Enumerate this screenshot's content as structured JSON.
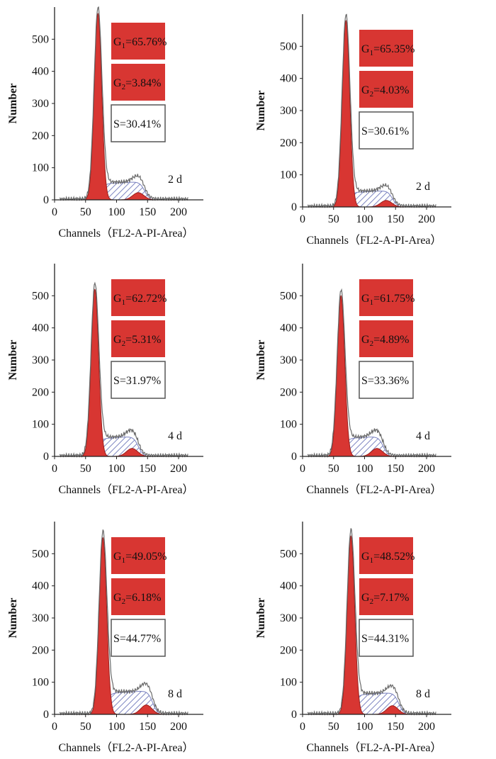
{
  "figure": {
    "axis_labels": {
      "x": "Channels（FL2-A-PI-Area）",
      "y": "Number"
    },
    "colors": {
      "g1_fill": "#d83632",
      "g1_stroke": "#9a1f1c",
      "s_hatch": "#7a82c0",
      "s_box_border": "#555555",
      "envelope": "#6a6a6a"
    }
  },
  "chart_data": [
    {
      "type": "histogram",
      "day": "2 d",
      "x_ticks": [
        0,
        50,
        100,
        150,
        200
      ],
      "y_ticks": [
        0,
        100,
        200,
        300,
        400,
        500
      ],
      "xlim": [
        0,
        240
      ],
      "ylim": [
        0,
        600
      ],
      "g1_peak_channel": 70,
      "g1_peak_height": 580,
      "g2_peak_channel": 135,
      "s_plateau_height": 50,
      "phases": [
        {
          "key": "G1",
          "sub": "1",
          "value": "=65.76%",
          "fill": "red"
        },
        {
          "key": "G2",
          "sub": "2",
          "value": "=3.84%",
          "fill": "red"
        },
        {
          "key": "S",
          "sub": "",
          "value": "=30.41%",
          "fill": "white"
        }
      ]
    },
    {
      "type": "histogram",
      "day": "2 d",
      "x_ticks": [
        0,
        50,
        100,
        150,
        200
      ],
      "y_ticks": [
        0,
        100,
        200,
        300,
        400,
        500
      ],
      "xlim": [
        0,
        240
      ],
      "ylim": [
        0,
        600
      ],
      "g1_peak_channel": 70,
      "g1_peak_height": 580,
      "g2_peak_channel": 135,
      "s_plateau_height": 45,
      "phases": [
        {
          "key": "G1",
          "sub": "1",
          "value": "=65.35%",
          "fill": "red"
        },
        {
          "key": "G2",
          "sub": "2",
          "value": "=4.03%",
          "fill": "red"
        },
        {
          "key": "S",
          "sub": "",
          "value": "=30.61%",
          "fill": "white"
        }
      ]
    },
    {
      "type": "histogram",
      "day": "4 d",
      "x_ticks": [
        0,
        50,
        100,
        150,
        200
      ],
      "y_ticks": [
        0,
        100,
        200,
        300,
        400,
        500
      ],
      "xlim": [
        0,
        240
      ],
      "ylim": [
        0,
        600
      ],
      "g1_peak_channel": 65,
      "g1_peak_height": 520,
      "g2_peak_channel": 125,
      "s_plateau_height": 55,
      "phases": [
        {
          "key": "G1",
          "sub": "1",
          "value": "=62.72%",
          "fill": "red"
        },
        {
          "key": "G2",
          "sub": "2",
          "value": "=5.31%",
          "fill": "red"
        },
        {
          "key": "S",
          "sub": "",
          "value": "=31.97%",
          "fill": "white"
        }
      ]
    },
    {
      "type": "histogram",
      "day": "4 d",
      "x_ticks": [
        0,
        50,
        100,
        150,
        200
      ],
      "y_ticks": [
        0,
        100,
        200,
        300,
        400,
        500
      ],
      "xlim": [
        0,
        240
      ],
      "ylim": [
        0,
        600
      ],
      "g1_peak_channel": 62,
      "g1_peak_height": 500,
      "g2_peak_channel": 120,
      "s_plateau_height": 55,
      "phases": [
        {
          "key": "G1",
          "sub": "1",
          "value": "=61.75%",
          "fill": "red"
        },
        {
          "key": "G2",
          "sub": "2",
          "value": "=4.89%",
          "fill": "red"
        },
        {
          "key": "S",
          "sub": "",
          "value": "=33.36%",
          "fill": "white"
        }
      ]
    },
    {
      "type": "histogram",
      "day": "8 d",
      "x_ticks": [
        0,
        50,
        100,
        150,
        200
      ],
      "y_ticks": [
        0,
        100,
        200,
        300,
        400,
        500
      ],
      "xlim": [
        0,
        240
      ],
      "ylim": [
        0,
        600
      ],
      "g1_peak_channel": 78,
      "g1_peak_height": 550,
      "g2_peak_channel": 148,
      "s_plateau_height": 65,
      "phases": [
        {
          "key": "G1",
          "sub": "1",
          "value": "=49.05%",
          "fill": "red"
        },
        {
          "key": "G2",
          "sub": "2",
          "value": "=6.18%",
          "fill": "red"
        },
        {
          "key": "S",
          "sub": "",
          "value": "=44.77%",
          "fill": "white"
        }
      ]
    },
    {
      "type": "histogram",
      "day": "8 d",
      "x_ticks": [
        0,
        50,
        100,
        150,
        200
      ],
      "y_ticks": [
        0,
        100,
        200,
        300,
        400,
        500
      ],
      "xlim": [
        0,
        240
      ],
      "ylim": [
        0,
        600
      ],
      "g1_peak_channel": 78,
      "g1_peak_height": 555,
      "g2_peak_channel": 145,
      "s_plateau_height": 60,
      "phases": [
        {
          "key": "G1",
          "sub": "1",
          "value": "=48.52%",
          "fill": "red"
        },
        {
          "key": "G2",
          "sub": "2",
          "value": "=7.17%",
          "fill": "red"
        },
        {
          "key": "S",
          "sub": "",
          "value": "=44.31%",
          "fill": "white"
        }
      ]
    }
  ]
}
